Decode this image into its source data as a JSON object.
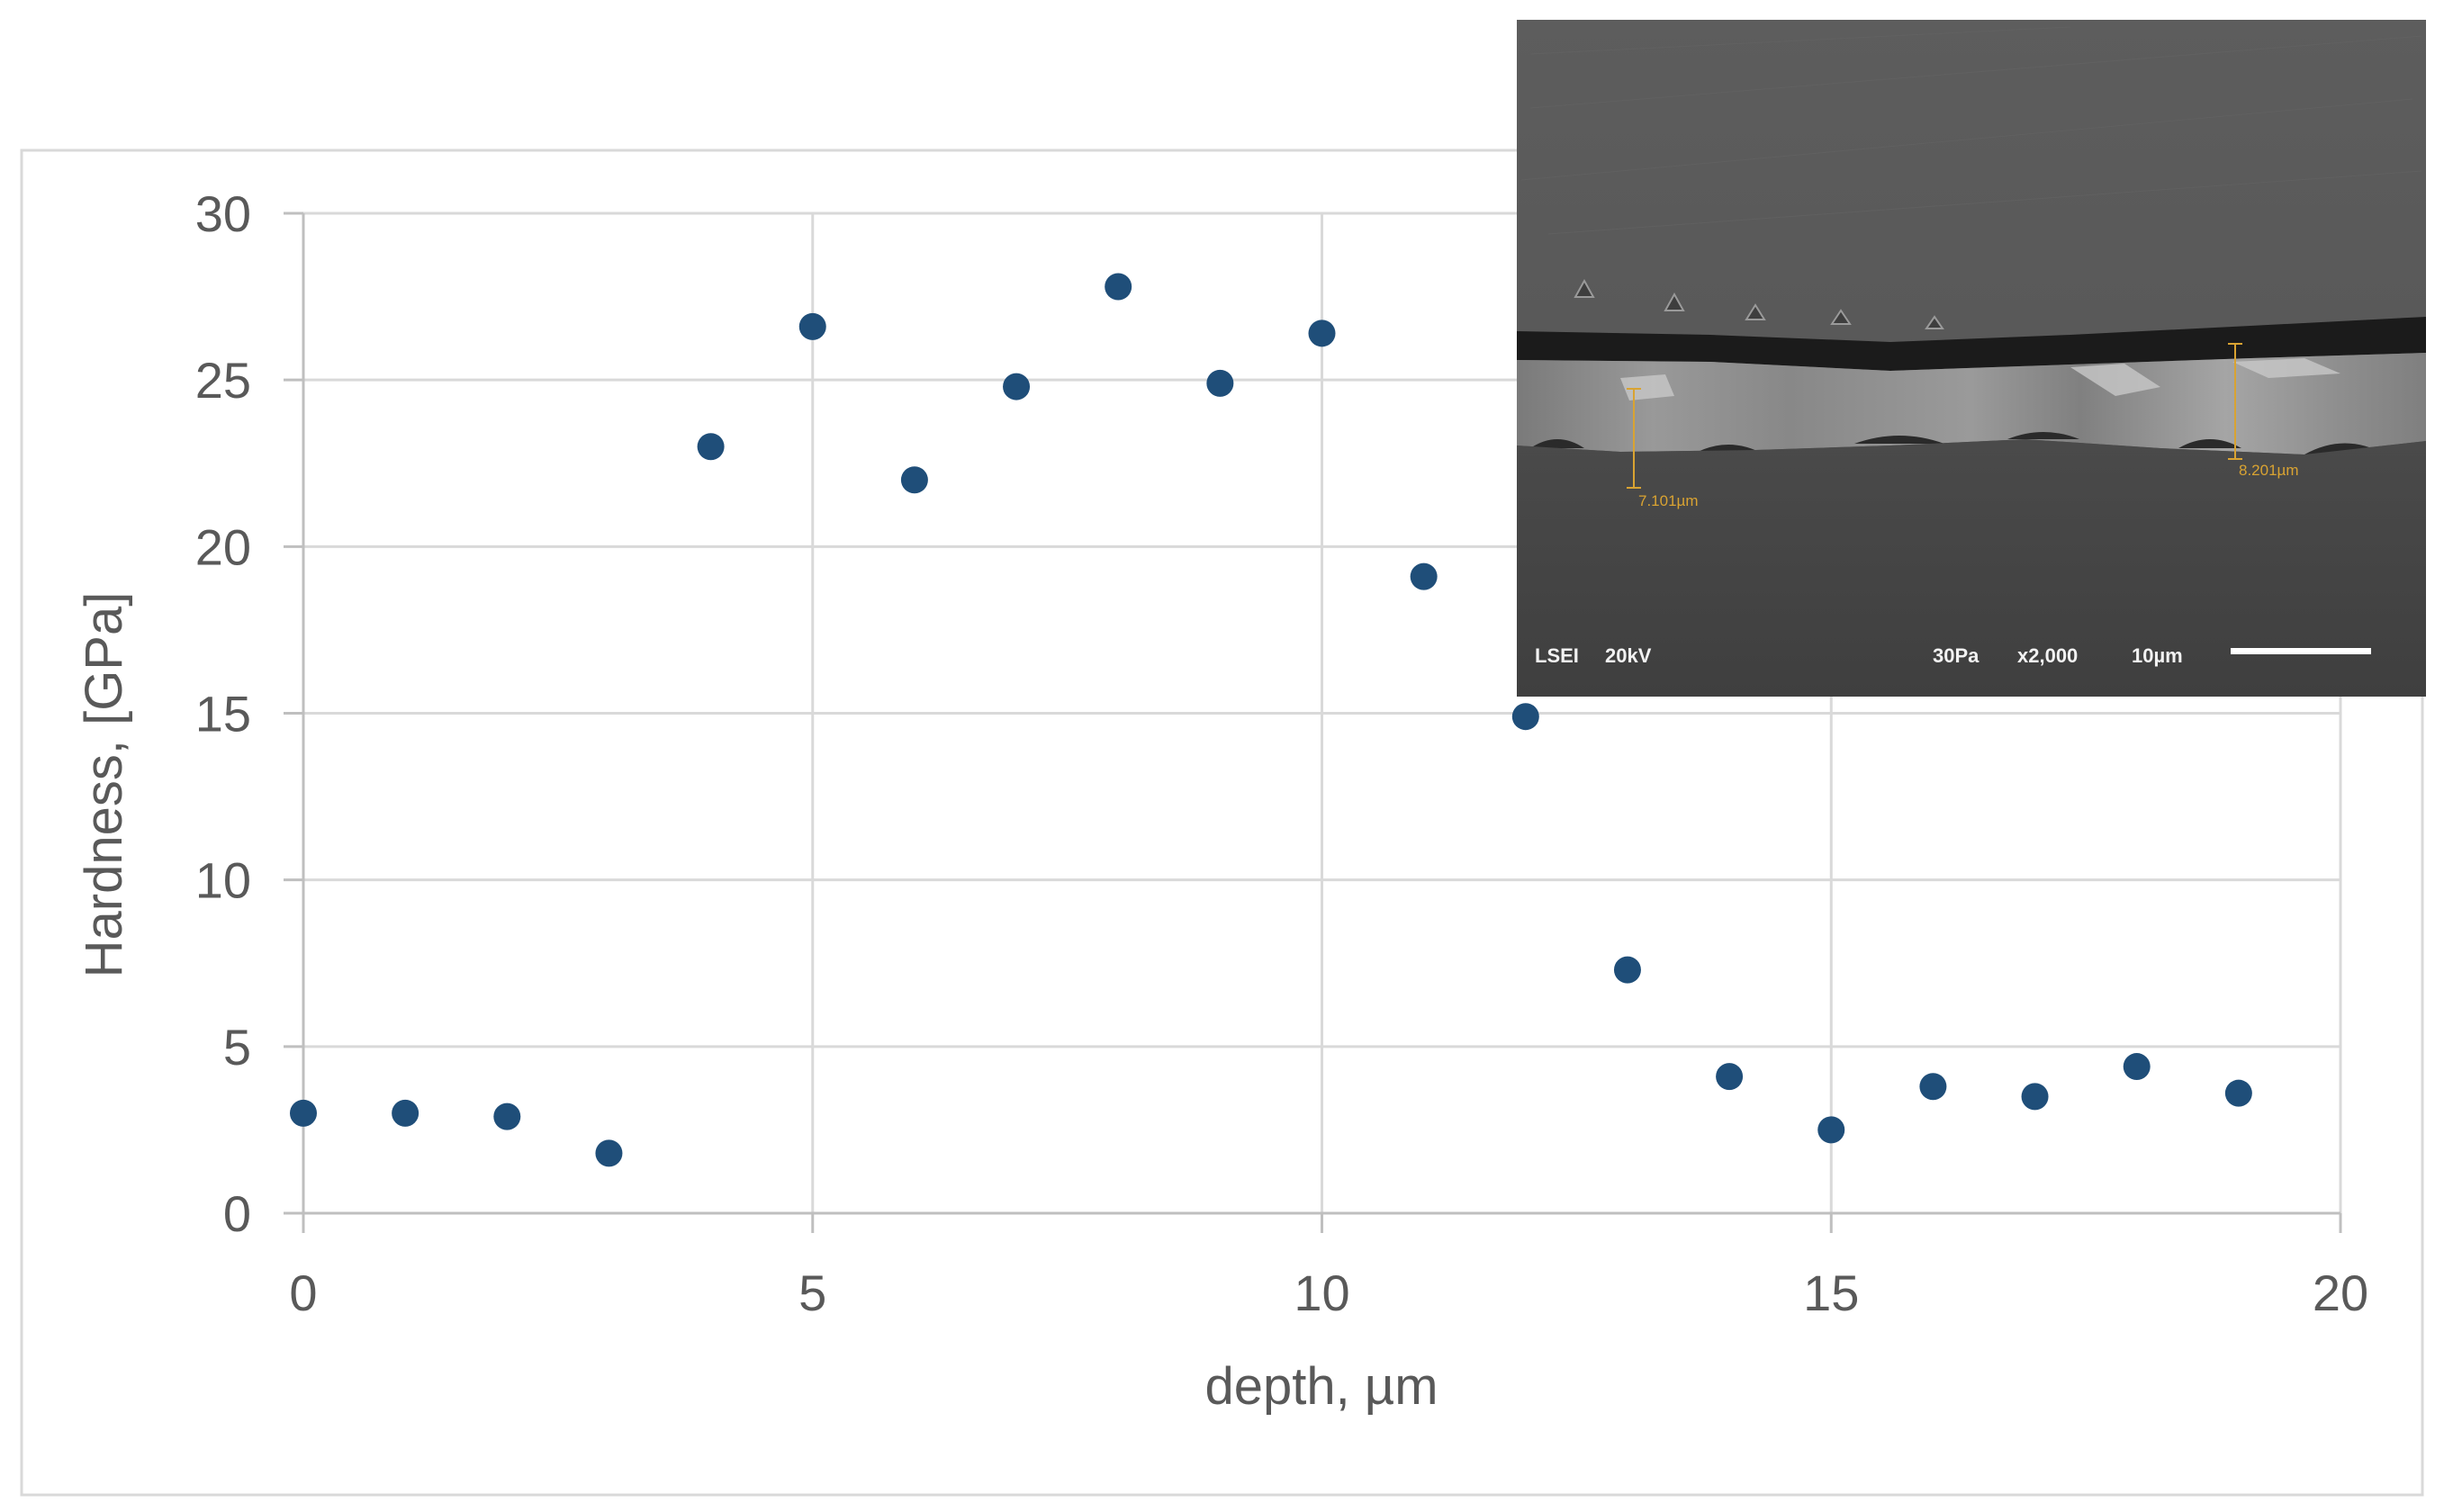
{
  "chart_data": {
    "type": "scatter",
    "xlabel": "depth, µm",
    "ylabel": "Hardness, [GPa]",
    "xlim": [
      0,
      20
    ],
    "ylim": [
      0,
      30
    ],
    "x_ticks": [
      "0",
      "5",
      "10",
      "15",
      "20"
    ],
    "y_ticks": [
      "0",
      "5",
      "10",
      "15",
      "20",
      "25",
      "30"
    ],
    "grid": true,
    "colors": {
      "marker": "#1f4e79",
      "grid": "#d9d9d9",
      "frame": "#d9d9d9",
      "text": "#595959"
    },
    "series": [
      {
        "x": [
          0,
          1,
          2,
          3,
          4,
          5,
          6,
          7,
          8,
          9,
          10,
          11,
          12,
          13,
          14,
          15,
          16,
          17,
          18,
          19
        ],
        "y": [
          3.0,
          3.0,
          2.9,
          1.8,
          23.0,
          26.6,
          22.0,
          24.8,
          27.8,
          24.9,
          26.4,
          19.1,
          14.9,
          7.3,
          4.1,
          2.5,
          3.8,
          3.5,
          4.4,
          3.6
        ]
      }
    ]
  },
  "inset": {
    "type": "SEM micrograph",
    "measurement_left": "7.101µm",
    "measurement_right": "8.201µm",
    "info_bar": {
      "detector": "LSEI",
      "voltage": "20kV",
      "pressure": "30Pa",
      "magnification": "x2,000",
      "scale": "10µm"
    }
  }
}
